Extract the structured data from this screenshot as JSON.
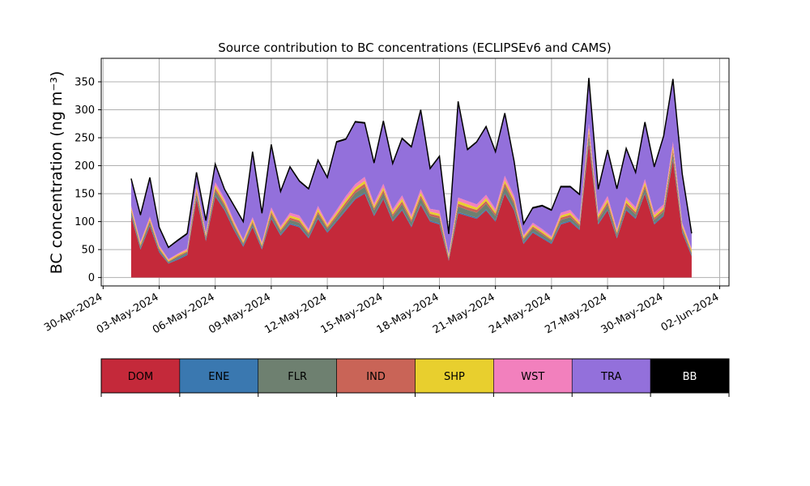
{
  "chart_data": {
    "type": "area",
    "stacked": true,
    "title": "Source contribution to BC concentrations (ECLIPSEv6 and CAMS)",
    "ylabel": "BC concentration (ng m⁻³)",
    "xlabel": "",
    "x_tick_labels": [
      "30-Apr-2024",
      "03-May-2024",
      "06-May-2024",
      "09-May-2024",
      "12-May-2024",
      "15-May-2024",
      "18-May-2024",
      "21-May-2024",
      "24-May-2024",
      "27-May-2024",
      "30-May-2024",
      "02-Jun-2024"
    ],
    "x_tick_days": [
      0,
      3,
      6,
      9,
      12,
      15,
      18,
      21,
      24,
      27,
      30,
      33
    ],
    "x_range_days": [
      -0.1,
      33.5
    ],
    "x_origin_date": "30-Apr-2024",
    "ylim": [
      -15,
      392
    ],
    "y_ticks": [
      0,
      50,
      100,
      150,
      200,
      250,
      300,
      350
    ],
    "grid": true,
    "legend_position": "below",
    "x_days": [
      1.5,
      2,
      2.5,
      3,
      3.5,
      4,
      4.5,
      5,
      5.5,
      6,
      6.5,
      7,
      7.5,
      8,
      8.5,
      9,
      9.5,
      10,
      10.5,
      11,
      11.5,
      12,
      12.5,
      13,
      13.5,
      14,
      14.5,
      15,
      15.5,
      16,
      16.5,
      17,
      17.5,
      18,
      18.5,
      19,
      19.5,
      20,
      20.5,
      21,
      21.5,
      22,
      22.5,
      23,
      23.5,
      24,
      24.5,
      25,
      25.5,
      26,
      26.5,
      27,
      27.5,
      28,
      28.5,
      29,
      29.5,
      30,
      30.5,
      31,
      31.5
    ],
    "series": [
      {
        "name": "DOM",
        "color": "#c4293a",
        "values": [
          110,
          50,
          92,
          45,
          25,
          32,
          40,
          140,
          65,
          145,
          120,
          85,
          55,
          90,
          50,
          105,
          75,
          95,
          90,
          70,
          105,
          80,
          100,
          120,
          140,
          150,
          110,
          140,
          100,
          120,
          90,
          130,
          100,
          95,
          30,
          115,
          110,
          105,
          120,
          100,
          150,
          120,
          60,
          80,
          70,
          60,
          95,
          100,
          85,
          240,
          95,
          120,
          70,
          120,
          105,
          150,
          95,
          110,
          210,
          80,
          38
        ]
      },
      {
        "name": "ENE",
        "color": "#3a78b0",
        "values": [
          2,
          2,
          2,
          2,
          1,
          2,
          2,
          2,
          2,
          2,
          2,
          2,
          2,
          2,
          2,
          2,
          2,
          2,
          2,
          2,
          2,
          2,
          2,
          2,
          2,
          2,
          2,
          2,
          2,
          2,
          2,
          2,
          2,
          2,
          1,
          2,
          2,
          2,
          2,
          2,
          2,
          2,
          2,
          2,
          2,
          2,
          2,
          2,
          2,
          2,
          2,
          2,
          2,
          2,
          2,
          2,
          2,
          2,
          2,
          2,
          2
        ]
      },
      {
        "name": "FLR",
        "color": "#6e8070",
        "values": [
          6,
          4,
          5,
          3,
          2,
          3,
          3,
          8,
          4,
          8,
          6,
          5,
          3,
          5,
          3,
          6,
          5,
          6,
          6,
          5,
          7,
          5,
          6,
          8,
          9,
          10,
          8,
          9,
          7,
          9,
          7,
          10,
          8,
          9,
          3,
          10,
          9,
          9,
          10,
          8,
          11,
          9,
          5,
          6,
          5,
          4,
          6,
          6,
          5,
          12,
          6,
          8,
          5,
          7,
          6,
          8,
          6,
          6,
          10,
          5,
          3
        ]
      },
      {
        "name": "IND",
        "color": "#c96457",
        "values": [
          3,
          2,
          3,
          2,
          1,
          2,
          2,
          5,
          3,
          5,
          4,
          3,
          2,
          3,
          2,
          4,
          3,
          4,
          4,
          3,
          4,
          3,
          4,
          5,
          5,
          6,
          4,
          5,
          4,
          5,
          4,
          5,
          4,
          4,
          2,
          5,
          5,
          5,
          5,
          4,
          6,
          5,
          3,
          3,
          3,
          2,
          4,
          4,
          3,
          7,
          4,
          5,
          3,
          5,
          4,
          5,
          4,
          4,
          7,
          3,
          2
        ]
      },
      {
        "name": "SHP",
        "color": "#e8cf2e",
        "values": [
          4,
          3,
          3,
          3,
          2,
          2,
          2,
          5,
          3,
          5,
          4,
          3,
          3,
          4,
          3,
          4,
          3,
          4,
          4,
          3,
          5,
          3,
          4,
          5,
          5,
          5,
          4,
          5,
          4,
          5,
          4,
          5,
          4,
          4,
          3,
          5,
          5,
          4,
          5,
          4,
          5,
          4,
          3,
          3,
          3,
          3,
          4,
          4,
          3,
          6,
          4,
          5,
          3,
          5,
          4,
          5,
          4,
          4,
          6,
          4,
          4
        ]
      },
      {
        "name": "WST",
        "color": "#f280bd",
        "values": [
          4,
          3,
          4,
          3,
          2,
          2,
          3,
          6,
          3,
          6,
          5,
          4,
          3,
          4,
          3,
          5,
          4,
          5,
          5,
          4,
          5,
          4,
          5,
          6,
          6,
          7,
          5,
          7,
          5,
          6,
          5,
          6,
          5,
          6,
          3,
          6,
          6,
          6,
          6,
          5,
          8,
          6,
          3,
          4,
          4,
          3,
          5,
          5,
          4,
          8,
          5,
          6,
          4,
          5,
          5,
          6,
          5,
          5,
          8,
          4,
          3
        ]
      },
      {
        "name": "TRA",
        "color": "#9370db",
        "values": [
          46,
          46,
          68,
          30,
          20,
          22,
          25,
          20,
          20,
          30,
          15,
          25,
          30,
          115,
          50,
          110,
          60,
          80,
          60,
          70,
          80,
          80,
          120,
          100,
          110,
          95,
          70,
          110,
          80,
          100,
          120,
          140,
          70,
          95,
          35,
          170,
          90,
          110,
          120,
          100,
          110,
          60,
          18,
          25,
          40,
          45,
          45,
          40,
          45,
          80,
          40,
          80,
          70,
          85,
          60,
          100,
          80,
          120,
          110,
          85,
          25
        ]
      },
      {
        "name": "BB",
        "color": "#000000",
        "values": [
          2,
          2,
          2,
          2,
          1,
          2,
          2,
          2,
          2,
          2,
          2,
          2,
          2,
          2,
          2,
          2,
          2,
          2,
          2,
          2,
          2,
          2,
          2,
          2,
          2,
          2,
          2,
          2,
          2,
          2,
          2,
          2,
          2,
          2,
          1,
          2,
          2,
          2,
          2,
          2,
          2,
          2,
          2,
          2,
          2,
          2,
          2,
          2,
          2,
          2,
          2,
          2,
          2,
          2,
          2,
          2,
          2,
          2,
          2,
          2,
          2
        ]
      }
    ]
  },
  "legend": {
    "title": "",
    "items": [
      {
        "label": "DOM",
        "color": "#c4293a",
        "text_color": "#000000"
      },
      {
        "label": "ENE",
        "color": "#3a78b0",
        "text_color": "#000000"
      },
      {
        "label": "FLR",
        "color": "#6e8070",
        "text_color": "#000000"
      },
      {
        "label": "IND",
        "color": "#c96457",
        "text_color": "#000000"
      },
      {
        "label": "SHP",
        "color": "#e8cf2e",
        "text_color": "#000000"
      },
      {
        "label": "WST",
        "color": "#f280bd",
        "text_color": "#000000"
      },
      {
        "label": "TRA",
        "color": "#9370db",
        "text_color": "#000000"
      },
      {
        "label": "BB",
        "color": "#000000",
        "text_color": "#ffffff"
      }
    ]
  }
}
